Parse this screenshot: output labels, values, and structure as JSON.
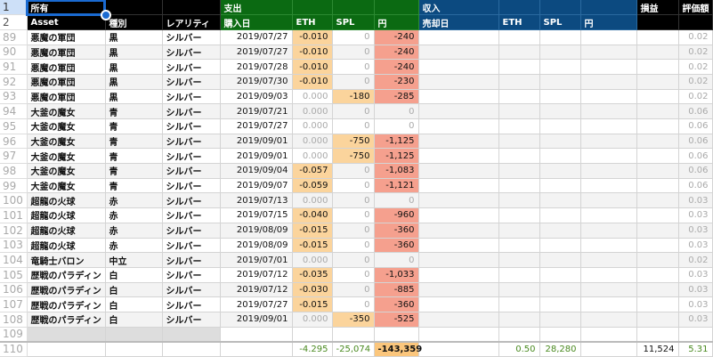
{
  "header1": {
    "row": "1",
    "owned": "所有",
    "expense": "支出",
    "income": "収入",
    "pl": "損益",
    "value": "評価額"
  },
  "header2": {
    "row": "2",
    "asset": "Asset",
    "type": "種別",
    "rarity": "レアリティ",
    "buy_date": "購入日",
    "eth": "ETH",
    "spl": "SPL",
    "yen": "円",
    "sell_date": "売却日",
    "eth2": "ETH",
    "spl2": "SPL",
    "yen2": "円"
  },
  "rows": [
    [
      "89",
      "悪魔の軍団",
      "黒",
      "シルバー",
      "2019/07/27",
      "-0.010",
      "0",
      "-240",
      "0.02"
    ],
    [
      "90",
      "悪魔の軍団",
      "黒",
      "シルバー",
      "2019/07/27",
      "-0.010",
      "0",
      "-240",
      "0.02"
    ],
    [
      "91",
      "悪魔の軍団",
      "黒",
      "シルバー",
      "2019/07/28",
      "-0.010",
      "0",
      "-240",
      "0.02"
    ],
    [
      "92",
      "悪魔の軍団",
      "黒",
      "シルバー",
      "2019/07/30",
      "-0.010",
      "0",
      "-230",
      "0.02"
    ],
    [
      "93",
      "悪魔の軍団",
      "黒",
      "シルバー",
      "2019/09/03",
      "0.000",
      "-180",
      "-285",
      "0.02"
    ],
    [
      "94",
      "大釜の魔女",
      "青",
      "シルバー",
      "2019/07/21",
      "0.000",
      "0",
      "0",
      "0.06"
    ],
    [
      "95",
      "大釜の魔女",
      "青",
      "シルバー",
      "2019/07/27",
      "0.000",
      "0",
      "0",
      "0.06"
    ],
    [
      "96",
      "大釜の魔女",
      "青",
      "シルバー",
      "2019/09/01",
      "0.000",
      "-750",
      "-1,125",
      "0.06"
    ],
    [
      "97",
      "大釜の魔女",
      "青",
      "シルバー",
      "2019/09/01",
      "0.000",
      "-750",
      "-1,125",
      "0.06"
    ],
    [
      "98",
      "大釜の魔女",
      "青",
      "シルバー",
      "2019/09/04",
      "-0.057",
      "0",
      "-1,083",
      "0.06"
    ],
    [
      "99",
      "大釜の魔女",
      "青",
      "シルバー",
      "2019/09/07",
      "-0.059",
      "0",
      "-1,121",
      "0.06"
    ],
    [
      "100",
      "超龍の火球",
      "赤",
      "シルバー",
      "2019/07/13",
      "0.000",
      "0",
      "0",
      "0.03"
    ],
    [
      "101",
      "超龍の火球",
      "赤",
      "シルバー",
      "2019/07/15",
      "-0.040",
      "0",
      "-960",
      "0.03"
    ],
    [
      "102",
      "超龍の火球",
      "赤",
      "シルバー",
      "2019/08/09",
      "-0.015",
      "0",
      "-360",
      "0.03"
    ],
    [
      "103",
      "超龍の火球",
      "赤",
      "シルバー",
      "2019/08/09",
      "-0.015",
      "0",
      "-360",
      "0.03"
    ],
    [
      "104",
      "竜騎士バロン",
      "中立",
      "シルバー",
      "2019/07/01",
      "0.000",
      "0",
      "0",
      "0.02"
    ],
    [
      "105",
      "歴戦のパラディン",
      "白",
      "シルバー",
      "2019/07/12",
      "-0.035",
      "0",
      "-1,033",
      "0.03"
    ],
    [
      "106",
      "歴戦のパラディン",
      "白",
      "シルバー",
      "2019/07/12",
      "-0.030",
      "0",
      "-885",
      "0.03"
    ],
    [
      "107",
      "歴戦のパラディン",
      "白",
      "シルバー",
      "2019/07/27",
      "-0.015",
      "0",
      "-360",
      "0.03"
    ],
    [
      "108",
      "歴戦のパラディン",
      "白",
      "シルバー",
      "2019/09/01",
      "0.000",
      "-350",
      "-525",
      "0.03"
    ]
  ],
  "empty_row": "109",
  "totals": {
    "row": "110",
    "eth": "-4.295",
    "spl": "-25,074",
    "yen": "-143,359",
    "eth2": "0.50",
    "spl2": "28,280",
    "pl": "11,524",
    "value": "5.31"
  }
}
